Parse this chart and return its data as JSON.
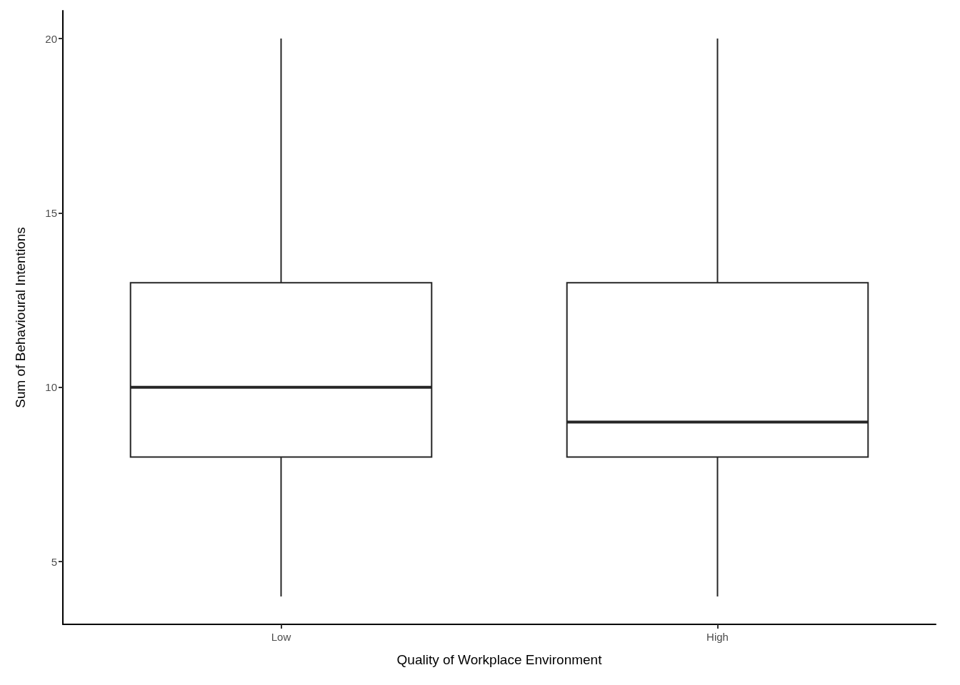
{
  "chart_data": {
    "type": "box",
    "xlabel": "Quality of Workplace Environment",
    "ylabel": "Sum of Behavioural Intentions",
    "categories": [
      "Low",
      "High"
    ],
    "boxes": [
      {
        "low": 4,
        "q1": 8,
        "median": 10,
        "q3": 13,
        "high": 20
      },
      {
        "low": 4,
        "q1": 8,
        "median": 9,
        "q3": 13,
        "high": 20
      }
    ],
    "ylim": [
      3.2,
      20.8
    ],
    "yticks": [
      5,
      10,
      15,
      20
    ],
    "grid": false
  }
}
